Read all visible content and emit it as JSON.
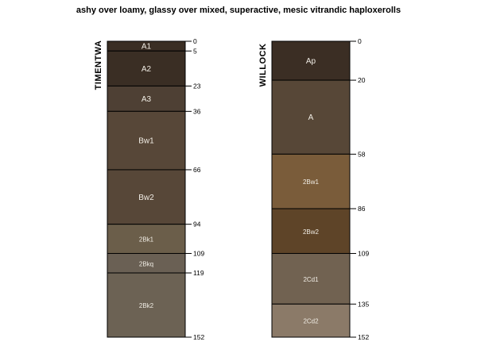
{
  "chart_data": {
    "type": "soil-profile",
    "title": "ashy over loamy, glassy over mixed, superactive, mesic vitrandic haploxerolls",
    "depth_range": [
      0,
      152
    ],
    "profiles": [
      {
        "name": "TIMENTWA",
        "horizons": [
          {
            "name": "A1",
            "top": 0,
            "bottom": 5,
            "color": "#3a2e24"
          },
          {
            "name": "A2",
            "top": 5,
            "bottom": 23,
            "color": "#3a2e24"
          },
          {
            "name": "A3",
            "top": 23,
            "bottom": 36,
            "color": "#4e4034"
          },
          {
            "name": "Bw1",
            "top": 36,
            "bottom": 66,
            "color": "#574738"
          },
          {
            "name": "Bw2",
            "top": 66,
            "bottom": 94,
            "color": "#574738"
          },
          {
            "name": "2Bk1",
            "top": 94,
            "bottom": 109,
            "color": "#6b5e4a"
          },
          {
            "name": "2Bkq",
            "top": 109,
            "bottom": 119,
            "color": "#6a6054"
          },
          {
            "name": "2Bk2",
            "top": 119,
            "bottom": 152,
            "color": "#6c6254"
          }
        ],
        "depth_labels": [
          "0",
          "5",
          "23",
          "36",
          "66",
          "94",
          "109",
          "119",
          "152"
        ]
      },
      {
        "name": "WILLOCK",
        "horizons": [
          {
            "name": "Ap",
            "top": 0,
            "bottom": 20,
            "color": "#3b2e24"
          },
          {
            "name": "A",
            "top": 20,
            "bottom": 58,
            "color": "#574737"
          },
          {
            "name": "2Bw1",
            "top": 58,
            "bottom": 86,
            "color": "#7a5c3a"
          },
          {
            "name": "2Bw2",
            "top": 86,
            "bottom": 109,
            "color": "#5e4428"
          },
          {
            "name": "2Cd1",
            "top": 109,
            "bottom": 135,
            "color": "#716251"
          },
          {
            "name": "2Cd2",
            "top": 135,
            "bottom": 152,
            "color": "#8b7a68"
          }
        ],
        "depth_labels": [
          "0",
          "20",
          "58",
          "86",
          "109",
          "135",
          "152"
        ]
      }
    ]
  }
}
